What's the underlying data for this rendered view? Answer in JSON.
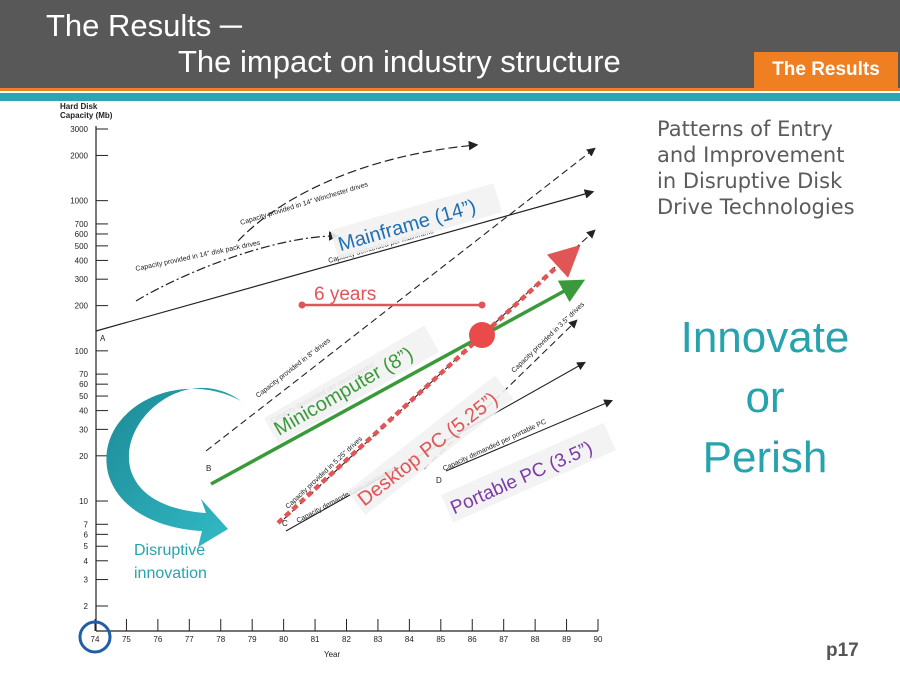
{
  "slide": {
    "title_line1": "The Results ─",
    "title_line2": "The impact on industry structure",
    "section_tag": "The Results",
    "side_title": [
      "Patterns of Entry",
      "and Improvement",
      "in Disruptive Disk",
      "Drive Technologies"
    ],
    "slogan": [
      "Innovate",
      "or",
      "Perish"
    ],
    "page_number": "p17"
  },
  "colors": {
    "header_bg": "#585858",
    "accent_orange": "#f07f22",
    "accent_teal": "#2aa5b3",
    "mainframe_blue": "#1f6fb5",
    "minicomputer_green": "#3a9a3a",
    "desktop_red": "#e05555",
    "portable_purple": "#7b3aa8",
    "years_red": "#e0555a"
  },
  "diagram": {
    "y_axis_title": [
      "Hard Disk",
      "Capacity (Mb)"
    ],
    "y_ticks": [
      "3000",
      "2000",
      "1000",
      "700",
      "600",
      "500",
      "400",
      "300",
      "200",
      "100",
      "70",
      "60",
      "50",
      "40",
      "30",
      "20",
      "10",
      "7",
      "6",
      "5",
      "4",
      "3",
      "2"
    ],
    "x_ticks": [
      "74",
      "75",
      "76",
      "77",
      "78",
      "79",
      "80",
      "81",
      "82",
      "83",
      "84",
      "85",
      "86",
      "87",
      "88",
      "89",
      "90"
    ],
    "x_axis_title": "Year",
    "point_labels": [
      "A",
      "B",
      "C",
      "D"
    ],
    "line_labels": {
      "winchester": "Capacity provided in 14\" Winchester drives",
      "disk_pack": "Capacity provided in 14\" disk pack drives",
      "demand_mainframe": "Capacity demanded per mainframe",
      "provided_8": "Capacity provided in 8\" drives",
      "demand_mini": "Capacity demanded per minicomputer",
      "provided_525": "Capacity provided in 5.25\" drives",
      "demand_desktop": "Capacity demanded per desktop PC",
      "provided_35": "Capacity provided in 3.5\" drives",
      "demand_portable": "Capacity demanded per portable PC"
    },
    "callouts": {
      "mainframe": "Mainframe (14”)",
      "minicomputer": "Minicomputer (8”)",
      "desktop": "Desktop PC (5.25”)",
      "portable": "Portable PC (3.5”)",
      "years": "6 years",
      "disruptive": [
        "Disruptive",
        "innovation"
      ]
    }
  }
}
